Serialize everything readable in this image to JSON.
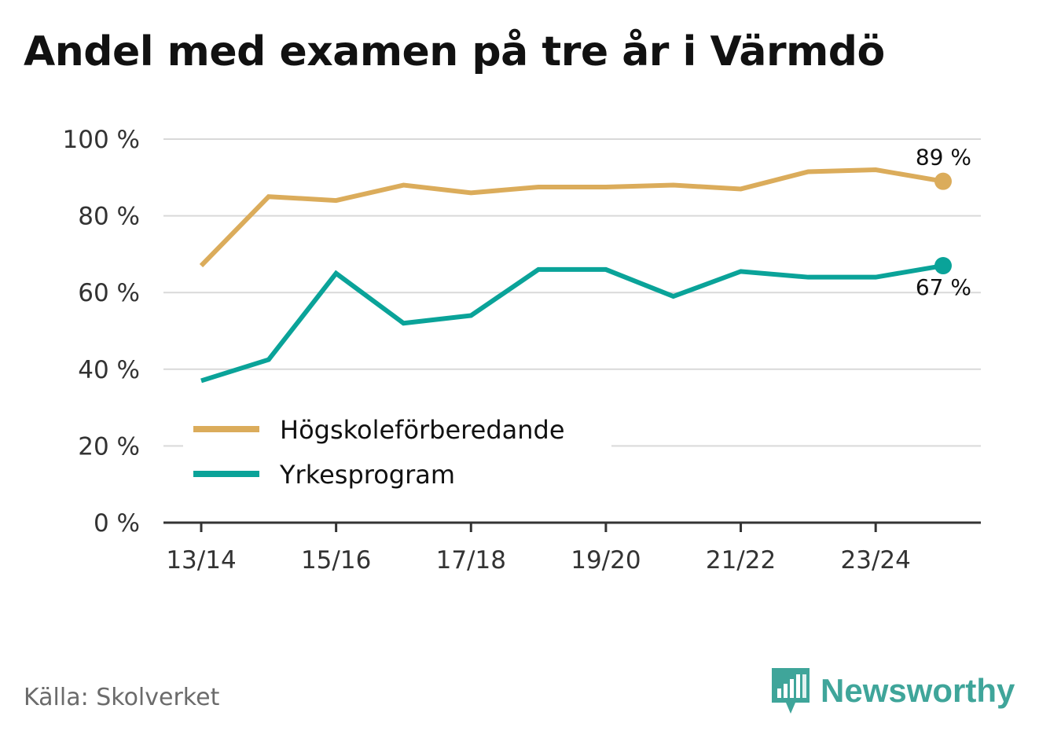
{
  "chart_data": {
    "type": "line",
    "title": "Andel med examen på tre år i Värmdö",
    "categories": [
      "13/14",
      "14/15",
      "15/16",
      "16/17",
      "17/18",
      "18/19",
      "19/20",
      "20/21",
      "21/22",
      "22/23",
      "23/24",
      "24/25"
    ],
    "x_tick_labels": [
      "13/14",
      "15/16",
      "17/18",
      "19/20",
      "21/22",
      "23/24"
    ],
    "ylim": [
      0,
      100
    ],
    "y_ticks": [
      0,
      20,
      40,
      60,
      80,
      100
    ],
    "y_tick_labels": [
      "0 %",
      "20 %",
      "40 %",
      "60 %",
      "80 %",
      "100 %"
    ],
    "series": [
      {
        "name": "Högskoleförberedande",
        "color": "#dbac5b",
        "values": [
          67,
          85,
          84,
          88,
          86,
          87.5,
          87.5,
          88,
          87,
          91.5,
          92,
          89
        ],
        "end_label": "89 %"
      },
      {
        "name": "Yrkesprogram",
        "color": "#0aa399",
        "values": [
          37,
          42.5,
          65,
          52,
          54,
          66,
          66,
          59,
          65.5,
          64,
          64,
          67
        ],
        "end_label": "67 %"
      }
    ],
    "legend_position": "bottom-left"
  },
  "source_text": "Källa: Skolverket",
  "brand": {
    "name": "Newsworthy",
    "icon": "newsworthy-logo-icon",
    "color": "#3fa59a"
  }
}
